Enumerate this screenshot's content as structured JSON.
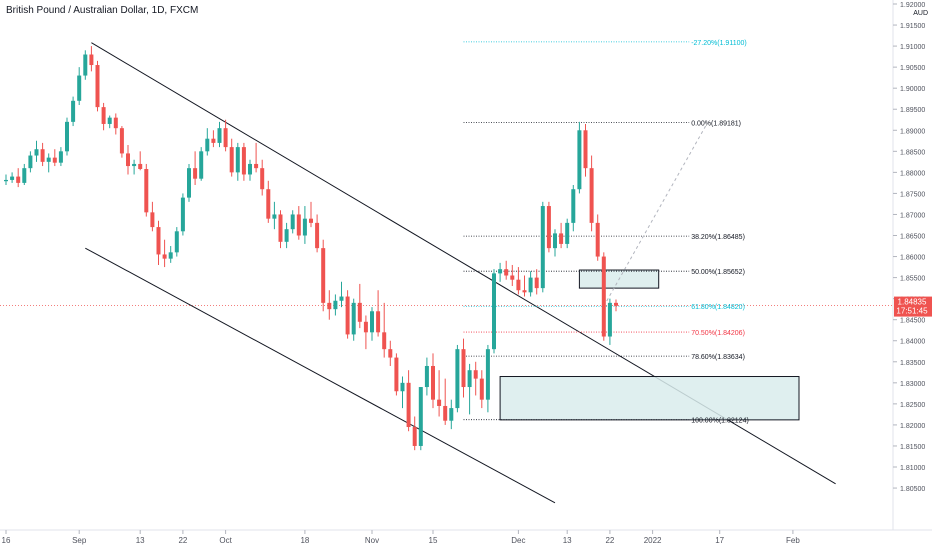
{
  "header": {
    "title": "British Pound / Australian Dollar, 1D, FXCM"
  },
  "price_axis": {
    "currency": "AUD",
    "current_price": "1.84835",
    "countdown": "17:51:45"
  },
  "colors": {
    "up": "#26a69a",
    "down": "#ef5350",
    "zone_fill": "#d9ecec",
    "fib_blue": "#00bcd4",
    "fib_red": "#f23645",
    "text": "#131722",
    "axis_text": "#50535e"
  },
  "chart_data": {
    "type": "candlestick",
    "title": "British Pound / Australian Dollar, 1D, FXCM",
    "ylim": [
      1.8005,
      1.92
    ],
    "y_ticks": [
      "1.92000",
      "1.91500",
      "1.91000",
      "1.90500",
      "1.90000",
      "1.89500",
      "1.89000",
      "1.88500",
      "1.88000",
      "1.87500",
      "1.87000",
      "1.86500",
      "1.86000",
      "1.85500",
      "1.85000",
      "1.84500",
      "1.84000",
      "1.83500",
      "1.83000",
      "1.82500",
      "1.82000",
      "1.81500",
      "1.81000",
      "1.80500"
    ],
    "x_ticks": [
      {
        "label": "16",
        "index": 0
      },
      {
        "label": "Sep",
        "index": 12
      },
      {
        "label": "13",
        "index": 22
      },
      {
        "label": "22",
        "index": 29
      },
      {
        "label": "Oct",
        "index": 36
      },
      {
        "label": "18",
        "index": 49
      },
      {
        "label": "Nov",
        "index": 60
      },
      {
        "label": "15",
        "index": 70
      },
      {
        "label": "Dec",
        "index": 84
      },
      {
        "label": "13",
        "index": 92
      },
      {
        "label": "22",
        "index": 99
      },
      {
        "label": "2022",
        "index": 106
      },
      {
        "label": "17",
        "index": 117
      },
      {
        "label": "Feb",
        "index": 129
      }
    ],
    "candles": [
      [
        1.8779,
        1.8795,
        1.877,
        1.8782
      ],
      [
        1.8782,
        1.88,
        1.8775,
        1.879
      ],
      [
        1.879,
        1.881,
        1.8765,
        1.8775
      ],
      [
        1.8775,
        1.882,
        1.877,
        1.881
      ],
      [
        1.881,
        1.885,
        1.88,
        1.884
      ],
      [
        1.884,
        1.8875,
        1.8825,
        1.8855
      ],
      [
        1.8855,
        1.887,
        1.8815,
        1.8825
      ],
      [
        1.8825,
        1.8845,
        1.88,
        1.8835
      ],
      [
        1.8835,
        1.8855,
        1.8815,
        1.8823
      ],
      [
        1.8823,
        1.886,
        1.8815,
        1.885
      ],
      [
        1.885,
        1.893,
        1.884,
        1.892
      ],
      [
        1.892,
        1.898,
        1.891,
        1.897
      ],
      [
        1.897,
        1.905,
        1.896,
        1.903
      ],
      [
        1.903,
        1.909,
        1.902,
        1.908
      ],
      [
        1.908,
        1.91,
        1.904,
        1.9055
      ],
      [
        1.9055,
        1.9065,
        1.8945,
        1.8955
      ],
      [
        1.8955,
        1.8965,
        1.89,
        1.8915
      ],
      [
        1.8915,
        1.8935,
        1.8905,
        1.893
      ],
      [
        1.893,
        1.894,
        1.889,
        1.8905
      ],
      [
        1.8905,
        1.891,
        1.8835,
        1.8845
      ],
      [
        1.8845,
        1.8865,
        1.8795,
        1.8815
      ],
      [
        1.8815,
        1.883,
        1.8795,
        1.882
      ],
      [
        1.882,
        1.885,
        1.8805,
        1.8808
      ],
      [
        1.8808,
        1.882,
        1.8695,
        1.8705
      ],
      [
        1.8705,
        1.873,
        1.866,
        1.867
      ],
      [
        1.867,
        1.8685,
        1.858,
        1.8605
      ],
      [
        1.8605,
        1.864,
        1.8575,
        1.8595
      ],
      [
        1.8595,
        1.8625,
        1.8585,
        1.861
      ],
      [
        1.861,
        1.867,
        1.86,
        1.866
      ],
      [
        1.866,
        1.875,
        1.865,
        1.874
      ],
      [
        1.874,
        1.882,
        1.873,
        1.881
      ],
      [
        1.881,
        1.885,
        1.877,
        1.8785
      ],
      [
        1.8785,
        1.886,
        1.878,
        1.885
      ],
      [
        1.885,
        1.8905,
        1.884,
        1.888
      ],
      [
        1.888,
        1.89,
        1.886,
        1.887
      ],
      [
        1.887,
        1.892,
        1.886,
        1.8905
      ],
      [
        1.8905,
        1.8925,
        1.885,
        1.886
      ],
      [
        1.886,
        1.888,
        1.879,
        1.88
      ],
      [
        1.88,
        1.887,
        1.878,
        1.886
      ],
      [
        1.886,
        1.887,
        1.878,
        1.8795
      ],
      [
        1.8795,
        1.883,
        1.878,
        1.882
      ],
      [
        1.882,
        1.887,
        1.88,
        1.881
      ],
      [
        1.881,
        1.883,
        1.8745,
        1.876
      ],
      [
        1.876,
        1.878,
        1.868,
        1.869
      ],
      [
        1.869,
        1.873,
        1.8665,
        1.87
      ],
      [
        1.87,
        1.871,
        1.862,
        1.8635
      ],
      [
        1.8635,
        1.868,
        1.862,
        1.8665
      ],
      [
        1.8665,
        1.871,
        1.8655,
        1.87
      ],
      [
        1.87,
        1.872,
        1.864,
        1.865
      ],
      [
        1.865,
        1.872,
        1.863,
        1.869
      ],
      [
        1.869,
        1.873,
        1.867,
        1.868
      ],
      [
        1.868,
        1.87,
        1.861,
        1.862
      ],
      [
        1.862,
        1.864,
        1.847,
        1.849
      ],
      [
        1.849,
        1.852,
        1.845,
        1.8475
      ],
      [
        1.8475,
        1.851,
        1.846,
        1.8495
      ],
      [
        1.8495,
        1.854,
        1.848,
        1.8505
      ],
      [
        1.8505,
        1.852,
        1.8405,
        1.8415
      ],
      [
        1.8415,
        1.85,
        1.84,
        1.849
      ],
      [
        1.849,
        1.8535,
        1.843,
        1.8445
      ],
      [
        1.8445,
        1.846,
        1.838,
        1.842
      ],
      [
        1.842,
        1.848,
        1.84,
        1.847
      ],
      [
        1.847,
        1.852,
        1.841,
        1.842
      ],
      [
        1.842,
        1.849,
        1.836,
        1.838
      ],
      [
        1.838,
        1.84,
        1.834,
        1.836
      ],
      [
        1.836,
        1.837,
        1.827,
        1.828
      ],
      [
        1.828,
        1.8315,
        1.824,
        1.83
      ],
      [
        1.83,
        1.833,
        1.8185,
        1.8195
      ],
      [
        1.8195,
        1.822,
        1.814,
        1.815
      ],
      [
        1.815,
        1.829,
        1.814,
        1.829
      ],
      [
        1.829,
        1.836,
        1.827,
        1.834
      ],
      [
        1.834,
        1.837,
        1.824,
        1.826
      ],
      [
        1.826,
        1.833,
        1.822,
        1.8245
      ],
      [
        1.8245,
        1.831,
        1.82,
        1.821
      ],
      [
        1.821,
        1.826,
        1.819,
        1.824
      ],
      [
        1.824,
        1.839,
        1.823,
        1.838
      ],
      [
        1.838,
        1.8405,
        1.8265,
        1.829
      ],
      [
        1.829,
        1.8345,
        1.8225,
        1.833
      ],
      [
        1.833,
        1.835,
        1.827,
        1.831
      ],
      [
        1.831,
        1.833,
        1.824,
        1.826
      ],
      [
        1.826,
        1.839,
        1.823,
        1.838
      ],
      [
        1.838,
        1.857,
        1.837,
        1.856
      ],
      [
        1.856,
        1.8585,
        1.854,
        1.857
      ],
      [
        1.857,
        1.859,
        1.8545,
        1.8555
      ],
      [
        1.8555,
        1.858,
        1.853,
        1.8545
      ],
      [
        1.8545,
        1.8575,
        1.851,
        1.852
      ],
      [
        1.852,
        1.8555,
        1.8505,
        1.8515
      ],
      [
        1.8515,
        1.8565,
        1.8505,
        1.855
      ],
      [
        1.855,
        1.857,
        1.851,
        1.8525
      ],
      [
        1.8525,
        1.873,
        1.8515,
        1.872
      ],
      [
        1.872,
        1.873,
        1.861,
        1.862
      ],
      [
        1.862,
        1.8665,
        1.86,
        1.8655
      ],
      [
        1.8655,
        1.868,
        1.862,
        1.863
      ],
      [
        1.863,
        1.869,
        1.862,
        1.868
      ],
      [
        1.868,
        1.877,
        1.866,
        1.876
      ],
      [
        1.876,
        1.892,
        1.875,
        1.89
      ],
      [
        1.89,
        1.8915,
        1.879,
        1.881
      ],
      [
        1.881,
        1.884,
        1.866,
        1.868
      ],
      [
        1.868,
        1.87,
        1.859,
        1.86
      ],
      [
        1.86,
        1.861,
        1.84,
        1.841
      ],
      [
        1.841,
        1.85,
        1.839,
        1.849
      ],
      [
        1.849,
        1.8498,
        1.847,
        1.8483
      ]
    ],
    "trendlines": [
      {
        "name": "upper channel",
        "from": {
          "index": 14,
          "price": 1.9108
        },
        "to": {
          "index": 136,
          "price": 1.806
        }
      },
      {
        "name": "lower channel",
        "from": {
          "index": 13,
          "price": 1.862
        },
        "to": {
          "index": 90,
          "price": 1.8015
        }
      }
    ],
    "zones": [
      {
        "name": "supply zone",
        "from_index": 94,
        "to_index": 107,
        "top": 1.8568,
        "bottom": 1.8525
      },
      {
        "name": "demand zone",
        "from_index": 81,
        "to_index": 130,
        "top": 1.8315,
        "bottom": 1.8212
      }
    ],
    "fibonacci": {
      "from_index": 75,
      "to_index": 112,
      "levels": [
        {
          "label": "-27.20%(1.91100)",
          "price": 1.911,
          "color": "#00bcd4"
        },
        {
          "label": "0.00%(1.89181)",
          "price": 1.89181,
          "color": "#131722"
        },
        {
          "label": "38.20%(1.86485)",
          "price": 1.86485,
          "color": "#131722"
        },
        {
          "label": "50.00%(1.85652)",
          "price": 1.85652,
          "color": "#131722"
        },
        {
          "label": "61.80%(1.84820)",
          "price": 1.8482,
          "color": "#00bcd4"
        },
        {
          "label": "70.50%(1.84206)",
          "price": 1.84206,
          "color": "#f23645"
        },
        {
          "label": "78.60%(1.83634)",
          "price": 1.83634,
          "color": "#131722"
        },
        {
          "label": "100.00%(1.82124)",
          "price": 1.82124,
          "color": "#131722"
        }
      ],
      "diagonal": {
        "from": {
          "index": 98,
          "price": 1.8482
        },
        "to": {
          "index": 115,
          "price": 1.8918
        }
      }
    },
    "current_price": 1.84835
  }
}
